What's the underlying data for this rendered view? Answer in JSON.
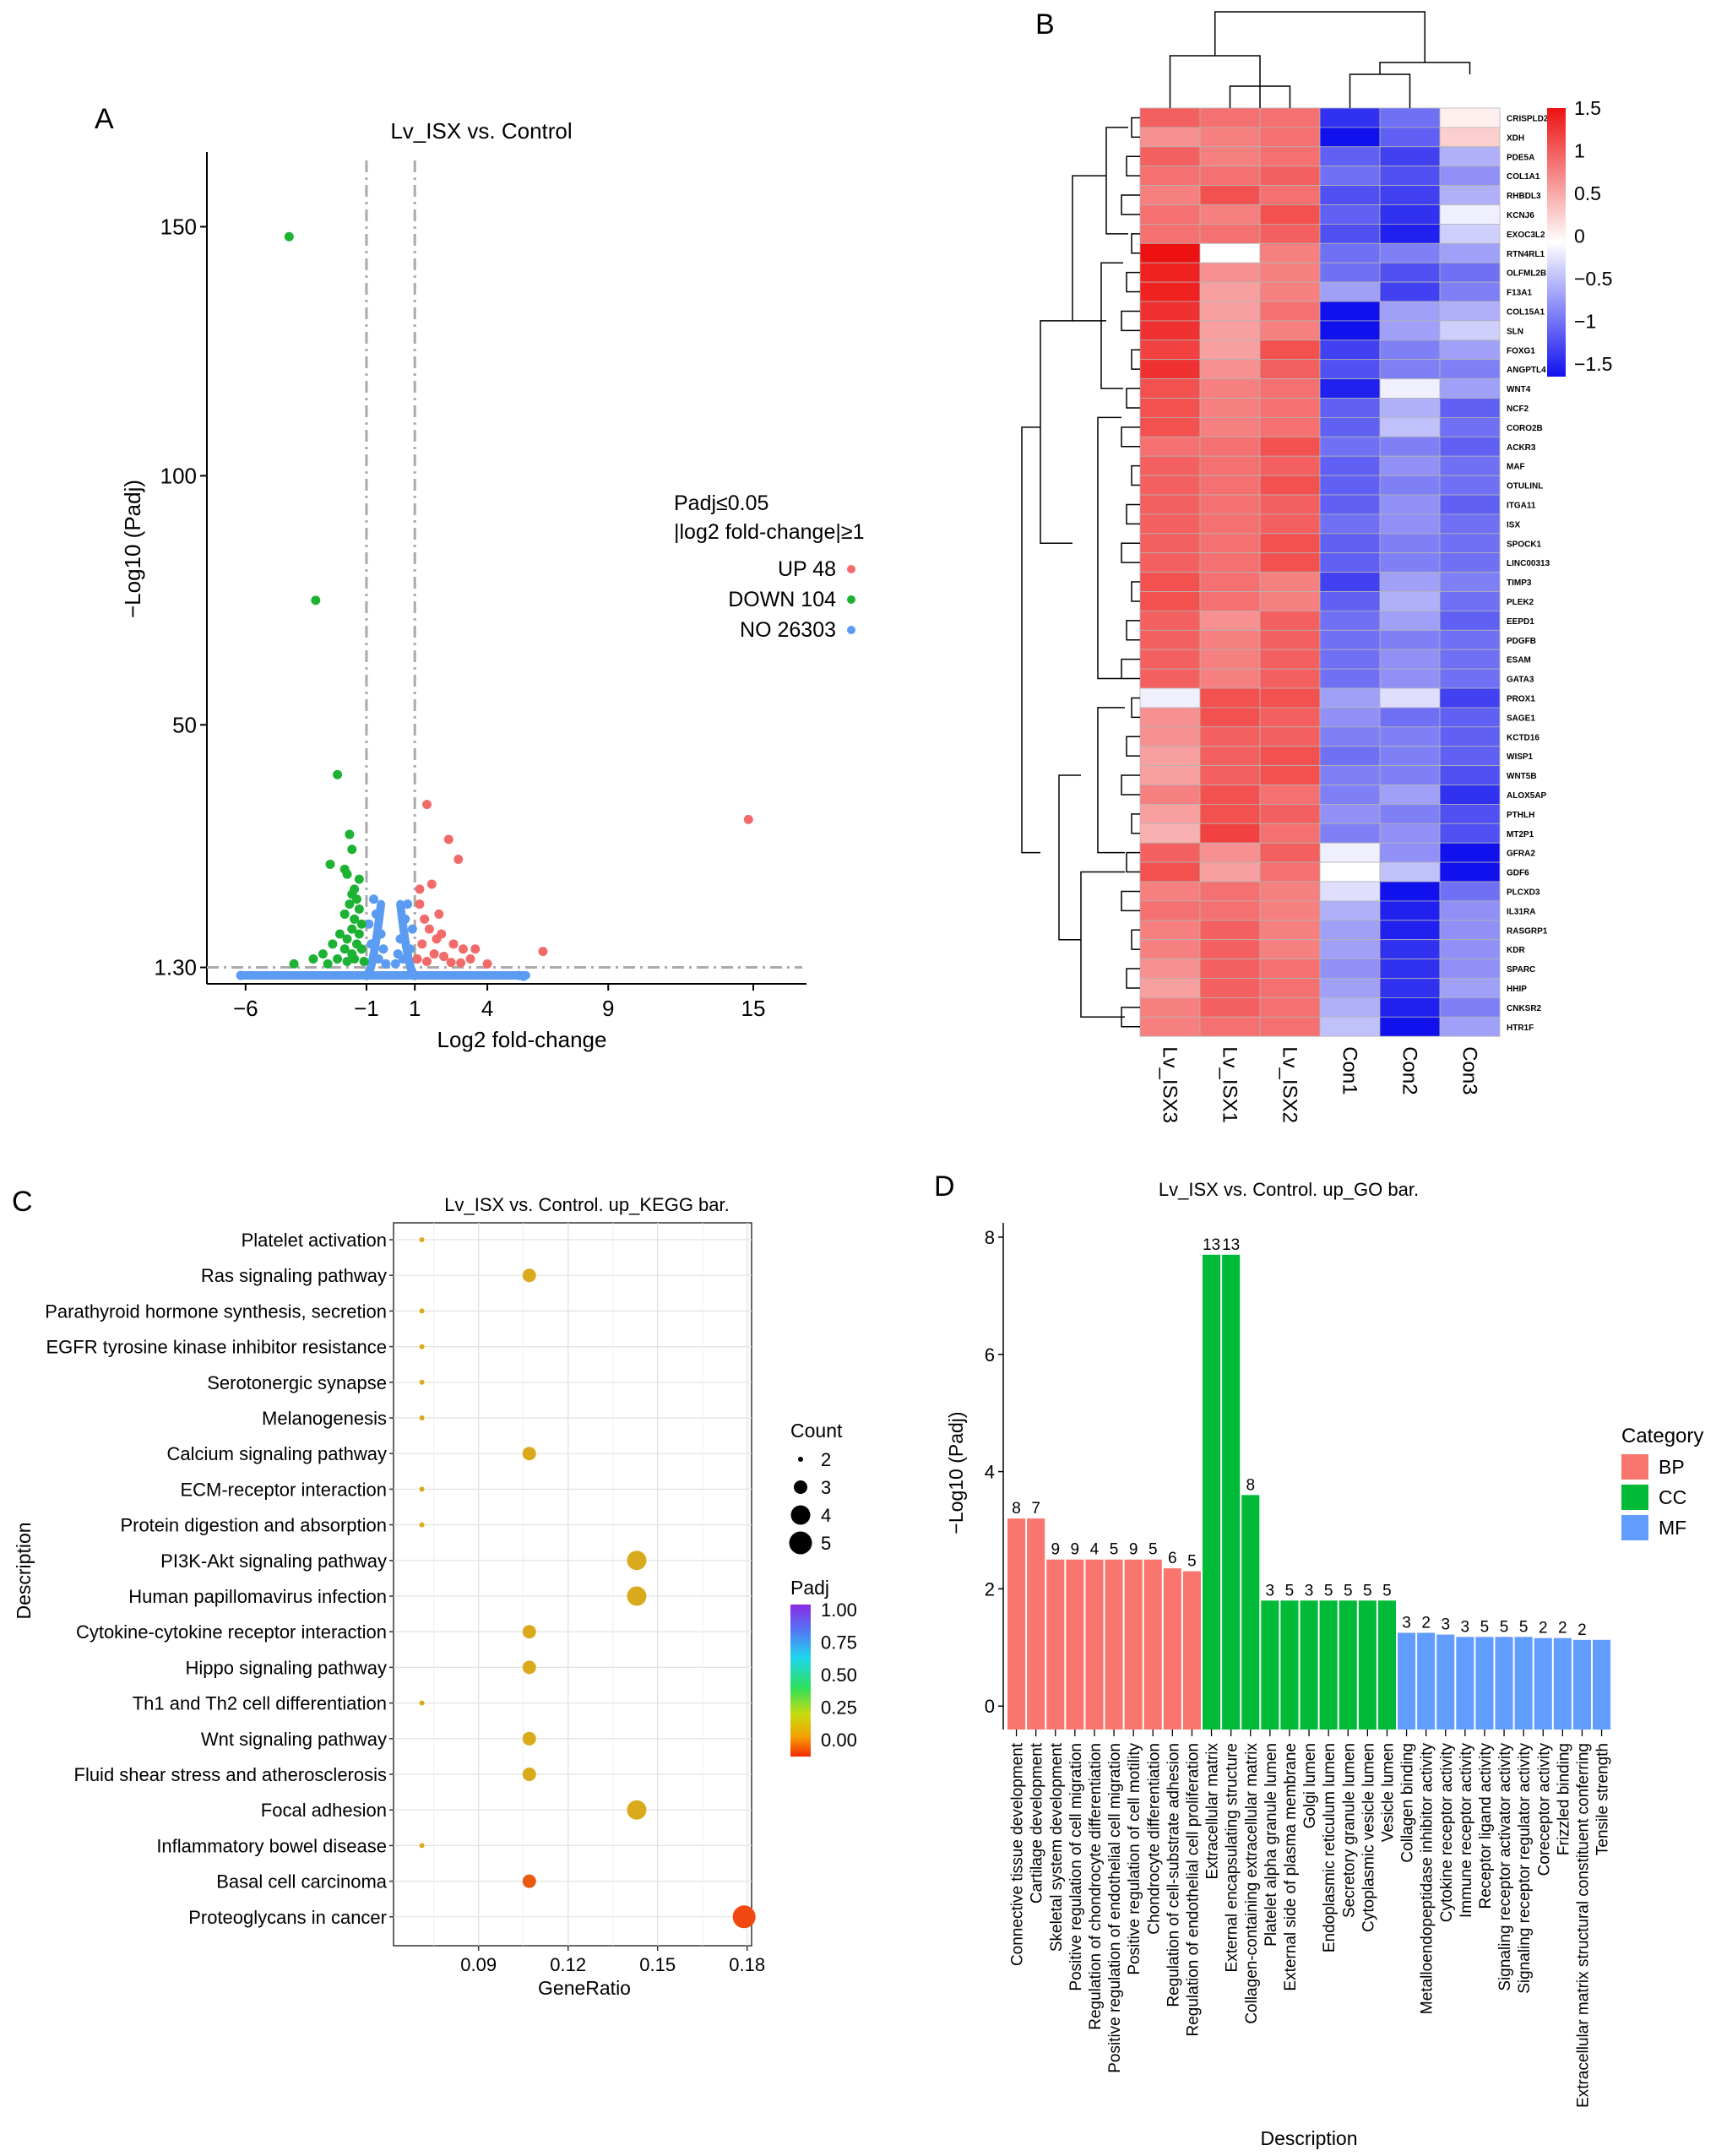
{
  "colors": {
    "up": "#f26b6b",
    "down": "#1db233",
    "no": "#5b9cf2",
    "bp": "#f8766d",
    "cc": "#00ba38",
    "mf": "#619cff",
    "heat_high": "#ee1111",
    "heat_mid": "#ffffff",
    "heat_low": "#1111ee"
  },
  "chart_data": [
    {
      "panel": "A",
      "type": "scatter",
      "title": "Lv_ISX vs. Control",
      "xlabel": "Log2 fold-change",
      "ylabel": "−Log10 (Padj)",
      "xlim": [
        -7.6,
        17.2
      ],
      "ylim": [
        -2,
        165
      ],
      "xticks": [
        -6,
        -1,
        1,
        4,
        9,
        15
      ],
      "xtick_labels": [
        "−6",
        "−1",
        "1",
        "4",
        "9",
        "15"
      ],
      "yticks": [
        1.3,
        50,
        100,
        150
      ],
      "ytick_labels": [
        "1.30",
        "50",
        "100",
        "150"
      ],
      "threshold_lines": {
        "x": [
          -1,
          1
        ],
        "y": 1.3
      },
      "legend": {
        "title1": "Padj≤0.05",
        "title2": "|log2 fold-change|≥1",
        "entries": [
          {
            "label": "UP 48",
            "group": "up"
          },
          {
            "label": "DOWN 104",
            "group": "down"
          },
          {
            "label": "NO 26303",
            "group": "no"
          }
        ]
      },
      "up_points": [
        [
          14.8,
          31
        ],
        [
          6.3,
          4.5
        ],
        [
          1.5,
          34
        ],
        [
          2.4,
          27
        ],
        [
          2.8,
          23
        ],
        [
          1.7,
          18
        ],
        [
          1.2,
          17
        ],
        [
          1.4,
          11
        ],
        [
          1.6,
          9
        ],
        [
          2.1,
          8
        ],
        [
          2.6,
          6
        ],
        [
          1.9,
          7
        ],
        [
          3.0,
          5
        ],
        [
          1.3,
          6
        ],
        [
          1.8,
          4
        ],
        [
          2.2,
          3.5
        ],
        [
          3.5,
          5
        ],
        [
          3.3,
          3
        ],
        [
          2.9,
          2.2
        ],
        [
          1.1,
          3
        ],
        [
          2.5,
          2.3
        ],
        [
          1.5,
          2.5
        ],
        [
          4.0,
          2
        ],
        [
          1.2,
          14
        ],
        [
          2.0,
          12
        ]
      ],
      "down_points": [
        [
          -4.2,
          148
        ],
        [
          -3.1,
          75
        ],
        [
          -2.2,
          40
        ],
        [
          -1.7,
          28
        ],
        [
          -2.5,
          22
        ],
        [
          -1.9,
          21
        ],
        [
          -1.8,
          20
        ],
        [
          -1.6,
          25
        ],
        [
          -1.5,
          17
        ],
        [
          -1.4,
          15
        ],
        [
          -1.7,
          14
        ],
        [
          -1.3,
          13
        ],
        [
          -1.9,
          12
        ],
        [
          -1.5,
          11
        ],
        [
          -1.2,
          10
        ],
        [
          -1.6,
          9
        ],
        [
          -2.1,
          8
        ],
        [
          -1.3,
          8
        ],
        [
          -1.8,
          7
        ],
        [
          -2.4,
          6
        ],
        [
          -1.4,
          6
        ],
        [
          -1.9,
          5
        ],
        [
          -2.8,
          4
        ],
        [
          -1.6,
          4
        ],
        [
          -1.2,
          5
        ],
        [
          -2.2,
          3
        ],
        [
          -3.2,
          3
        ],
        [
          -1.5,
          3
        ],
        [
          -1.8,
          2.5
        ],
        [
          -2.6,
          2
        ],
        [
          -1.1,
          2.5
        ],
        [
          -4.0,
          2
        ],
        [
          -1.3,
          19
        ],
        [
          -1.6,
          16
        ]
      ],
      "no_points": [
        [
          -6.2,
          -0.3
        ],
        [
          5.3,
          -0.3
        ],
        [
          5.5,
          -0.5
        ],
        [
          -0.6,
          12
        ],
        [
          0.6,
          11
        ],
        [
          -0.4,
          8
        ],
        [
          0.4,
          7
        ],
        [
          -0.8,
          6
        ],
        [
          0.8,
          5
        ],
        [
          -0.3,
          5
        ],
        [
          0.3,
          4
        ],
        [
          0.9,
          9
        ],
        [
          -0.9,
          10
        ],
        [
          0.7,
          14
        ],
        [
          -0.7,
          15
        ],
        [
          0.5,
          3
        ],
        [
          -0.5,
          3
        ],
        [
          0.2,
          2
        ],
        [
          -0.2,
          2
        ]
      ],
      "no_band": [
        -6.2,
        5.6
      ]
    },
    {
      "panel": "B",
      "type": "heatmap",
      "columns": [
        "Lv_ISX3",
        "Lv_ISX1",
        "Lv_ISX2",
        "Con1",
        "Con2",
        "Con3"
      ],
      "rows": [
        "CRISPLD2",
        "XDH",
        "PDE5A",
        "COL1A1",
        "RHBDL3",
        "KCNJ6",
        "EXOC3L2",
        "RTN4RL1",
        "OLFML2B",
        "F13A1",
        "COL15A1",
        "SLN",
        "FOXG1",
        "ANGPTL4",
        "WNT4",
        "NCF2",
        "CORO2B",
        "ACKR3",
        "MAF",
        "OTULINL",
        "ITGA11",
        "ISX",
        "SPOCK1",
        "LINC00313",
        "TIMP3",
        "PLEK2",
        "EEPD1",
        "PDGFB",
        "ESAM",
        "GATA3",
        "PROX1",
        "SAGE1",
        "KCTD16",
        "WISP1",
        "WNT5B",
        "ALOX5AP",
        "PTHLH",
        "MT2P1",
        "GFRA2",
        "GDF6",
        "PLCXD3",
        "IL31RA",
        "RASGRP1",
        "KDR",
        "SPARC",
        "HHIP",
        "CNKSR2",
        "HTR1F"
      ],
      "values": [
        [
          1.0,
          0.9,
          0.9,
          -1.3,
          -0.9,
          0.1
        ],
        [
          0.7,
          0.8,
          0.9,
          -1.6,
          -1.0,
          0.3
        ],
        [
          1.0,
          0.8,
          0.9,
          -1.0,
          -1.2,
          -0.5
        ],
        [
          0.9,
          0.9,
          1.0,
          -0.9,
          -1.1,
          -0.7
        ],
        [
          0.8,
          1.1,
          0.9,
          -1.1,
          -1.2,
          -0.5
        ],
        [
          0.9,
          0.8,
          1.1,
          -1.0,
          -1.3,
          -0.1
        ],
        [
          0.9,
          0.9,
          1.0,
          -1.1,
          -1.4,
          -0.3
        ],
        [
          1.5,
          0.0,
          0.8,
          -0.9,
          -0.8,
          -0.6
        ],
        [
          1.4,
          0.7,
          0.8,
          -0.9,
          -1.1,
          -0.9
        ],
        [
          1.4,
          0.6,
          0.8,
          -0.6,
          -1.2,
          -0.8
        ],
        [
          1.3,
          0.6,
          0.9,
          -1.5,
          -0.6,
          -0.5
        ],
        [
          1.3,
          0.6,
          0.8,
          -1.5,
          -0.6,
          -0.3
        ],
        [
          1.2,
          0.6,
          1.1,
          -1.2,
          -0.8,
          -0.6
        ],
        [
          1.3,
          0.7,
          1.0,
          -1.1,
          -0.8,
          -0.8
        ],
        [
          1.1,
          0.8,
          0.9,
          -1.4,
          -0.1,
          -0.6
        ],
        [
          1.1,
          0.8,
          0.9,
          -1.0,
          -0.5,
          -1.0
        ],
        [
          1.1,
          0.8,
          0.9,
          -1.0,
          -0.4,
          -0.9
        ],
        [
          0.9,
          0.9,
          1.1,
          -0.9,
          -0.8,
          -1.0
        ],
        [
          1.0,
          0.9,
          1.0,
          -1.0,
          -0.7,
          -0.9
        ],
        [
          1.0,
          0.9,
          1.1,
          -1.0,
          -0.8,
          -0.9
        ],
        [
          1.0,
          0.9,
          1.0,
          -1.0,
          -0.7,
          -1.0
        ],
        [
          1.0,
          0.9,
          1.0,
          -0.9,
          -0.7,
          -0.9
        ],
        [
          1.0,
          0.9,
          1.1,
          -1.0,
          -0.8,
          -0.9
        ],
        [
          1.0,
          0.9,
          1.1,
          -1.0,
          -0.8,
          -0.9
        ],
        [
          1.1,
          0.9,
          0.8,
          -1.2,
          -0.6,
          -0.8
        ],
        [
          1.1,
          0.9,
          0.8,
          -1.0,
          -0.5,
          -0.9
        ],
        [
          1.0,
          0.7,
          1.0,
          -0.9,
          -0.6,
          -1.0
        ],
        [
          1.0,
          0.8,
          1.0,
          -0.9,
          -0.8,
          -0.9
        ],
        [
          1.0,
          0.8,
          1.0,
          -0.9,
          -0.7,
          -0.9
        ],
        [
          1.0,
          0.8,
          1.0,
          -0.9,
          -0.7,
          -0.9
        ],
        [
          -0.1,
          1.1,
          1.1,
          -0.6,
          -0.2,
          -1.2
        ],
        [
          0.7,
          1.1,
          1.0,
          -0.7,
          -0.9,
          -1.0
        ],
        [
          0.7,
          1.0,
          1.0,
          -0.8,
          -0.8,
          -1.0
        ],
        [
          0.6,
          1.0,
          1.1,
          -0.9,
          -0.8,
          -1.0
        ],
        [
          0.6,
          1.0,
          1.1,
          -0.8,
          -0.8,
          -1.1
        ],
        [
          0.8,
          1.1,
          0.9,
          -0.8,
          -0.6,
          -1.3
        ],
        [
          0.6,
          1.1,
          1.0,
          -0.7,
          -0.8,
          -1.1
        ],
        [
          0.5,
          1.2,
          0.9,
          -0.8,
          -0.7,
          -1.1
        ],
        [
          1.0,
          0.7,
          1.0,
          -0.1,
          -0.7,
          -1.5
        ],
        [
          1.1,
          0.6,
          0.9,
          0.0,
          -0.4,
          -1.6
        ],
        [
          0.8,
          0.9,
          0.8,
          -0.2,
          -1.5,
          -0.9
        ],
        [
          0.9,
          0.9,
          0.8,
          -0.5,
          -1.4,
          -0.7
        ],
        [
          0.8,
          1.0,
          0.8,
          -0.6,
          -1.4,
          -0.7
        ],
        [
          0.8,
          1.0,
          0.8,
          -0.6,
          -1.3,
          -0.7
        ],
        [
          0.7,
          1.0,
          0.9,
          -0.7,
          -1.3,
          -0.7
        ],
        [
          0.6,
          1.0,
          0.9,
          -0.6,
          -1.3,
          -0.6
        ],
        [
          0.8,
          1.0,
          0.9,
          -0.5,
          -1.4,
          -0.8
        ],
        [
          0.8,
          0.9,
          0.9,
          -0.4,
          -1.5,
          -0.6
        ]
      ],
      "scale": {
        "min": -1.5,
        "max": 1.5,
        "ticks": [
          "1.5",
          "1",
          "0.5",
          "0",
          "−0.5",
          "−1",
          "−1.5"
        ]
      }
    },
    {
      "panel": "C",
      "type": "scatter",
      "title": "Lv_ISX vs. Control. up_KEGG bar.",
      "xlabel": "GeneRatio",
      "ylabel": "Description",
      "xlim": [
        0.0615,
        0.1815
      ],
      "xticks": [
        0.09,
        0.12,
        0.15,
        0.18
      ],
      "xtick_labels": [
        "0.09",
        "0.12",
        "0.15",
        "0.18"
      ],
      "categories": [
        "Platelet activation",
        "Ras signaling pathway",
        "Parathyroid hormone synthesis, secretion",
        "EGFR tyrosine kinase inhibitor resistance",
        "Serotonergic synapse",
        "Melanogenesis",
        "Calcium signaling pathway",
        "ECM-receptor interaction",
        "Protein digestion and absorption",
        "PI3K-Akt signaling pathway",
        "Human papillomavirus infection",
        "Cytokine-cytokine receptor interaction",
        "Hippo signaling pathway",
        "Th1 and Th2 cell differentiation",
        "Wnt signaling pathway",
        "Fluid shear stress and atherosclerosis",
        "Focal adhesion",
        "Inflammatory bowel disease",
        "Basal cell carcinoma",
        "Proteoglycans in cancer"
      ],
      "gene_ratio": [
        0.071,
        0.107,
        0.071,
        0.071,
        0.071,
        0.071,
        0.107,
        0.071,
        0.071,
        0.143,
        0.143,
        0.107,
        0.107,
        0.071,
        0.107,
        0.107,
        0.143,
        0.071,
        0.107,
        0.179
      ],
      "count": [
        2,
        3,
        2,
        2,
        2,
        2,
        3,
        2,
        2,
        4,
        4,
        3,
        3,
        2,
        3,
        3,
        4,
        2,
        3,
        5
      ],
      "padj": [
        0.18,
        0.18,
        0.18,
        0.18,
        0.18,
        0.18,
        0.18,
        0.18,
        0.18,
        0.18,
        0.18,
        0.18,
        0.18,
        0.18,
        0.18,
        0.18,
        0.18,
        0.18,
        0.06,
        0.02
      ],
      "size_legend": {
        "title": "Count",
        "labels": [
          "2",
          "3",
          "4",
          "5"
        ]
      },
      "color_legend": {
        "title": "Padj",
        "labels": [
          "1.00",
          "0.75",
          "0.50",
          "0.25",
          "0.00"
        ]
      }
    },
    {
      "panel": "D",
      "type": "bar",
      "title": "Lv_ISX vs. Control. up_GO bar.",
      "xlabel": "Description",
      "ylabel": "−Log10 (Padj)",
      "ylim": [
        -0.4,
        8.1
      ],
      "yticks": [
        "0",
        "2",
        "4",
        "6",
        "8"
      ],
      "categories": [
        "Connective tissue development",
        "Cartilage development",
        "Skeletal system development",
        "Positive regulation of cell migration",
        "Regulation of chondrocyte differentiation",
        "Positive regulation of endothelial cell migration",
        "Positive regulation of cell motility",
        "Chondrocyte differentiation",
        "Regulation of cell-substrate adhesion",
        "Regulation of endothelial cell proliferation",
        "Extracellular matrix",
        "External encapsulating structure",
        "Collagen-containing extracellular matrix",
        "Platelet alpha granule lumen",
        "External side of plasma membrane",
        "Golgi lumen",
        "Endoplasmic reticulum lumen",
        "Secretory granule lumen",
        "Cytoplasmic vesicle lumen",
        "Vesicle lumen",
        "Collagen binding",
        "Metalloendopeptidase inhibitor activity",
        "Cytokine receptor activity",
        "Immune receptor activity",
        "Receptor ligand activity",
        "Signaling receptor activator activity",
        "Signaling receptor regulator activity",
        "Coreceptor activity",
        "Frizzled binding",
        "Extracellular matrix structural constituent conferring",
        "Tensile strength"
      ],
      "values": [
        3.2,
        3.2,
        2.5,
        2.5,
        2.5,
        2.5,
        2.5,
        2.5,
        2.35,
        2.3,
        7.7,
        7.7,
        3.6,
        1.8,
        1.8,
        1.8,
        1.8,
        1.8,
        1.8,
        1.8,
        1.25,
        1.25,
        1.22,
        1.18,
        1.18,
        1.18,
        1.18,
        1.16,
        1.16,
        1.13,
        1.13
      ],
      "counts": [
        "8",
        "7",
        "9",
        "9",
        "4",
        "5",
        "9",
        "5",
        "6",
        "5",
        "13",
        "13",
        "8",
        "3",
        "5",
        "3",
        "5",
        "5",
        "5",
        "5",
        "3",
        "2",
        "3",
        "3",
        "5",
        "5",
        "5",
        "2",
        "2",
        "2",
        ""
      ],
      "category_groups": [
        "BP",
        "BP",
        "BP",
        "BP",
        "BP",
        "BP",
        "BP",
        "BP",
        "BP",
        "BP",
        "CC",
        "CC",
        "CC",
        "CC",
        "CC",
        "CC",
        "CC",
        "CC",
        "CC",
        "CC",
        "MF",
        "MF",
        "MF",
        "MF",
        "MF",
        "MF",
        "MF",
        "MF",
        "MF",
        "MF",
        "MF"
      ],
      "legend": {
        "title": "Category",
        "entries": [
          "BP",
          "CC",
          "MF"
        ]
      }
    }
  ],
  "panel_labels": {
    "a": "A",
    "b": "B",
    "c": "C",
    "d": "D"
  }
}
